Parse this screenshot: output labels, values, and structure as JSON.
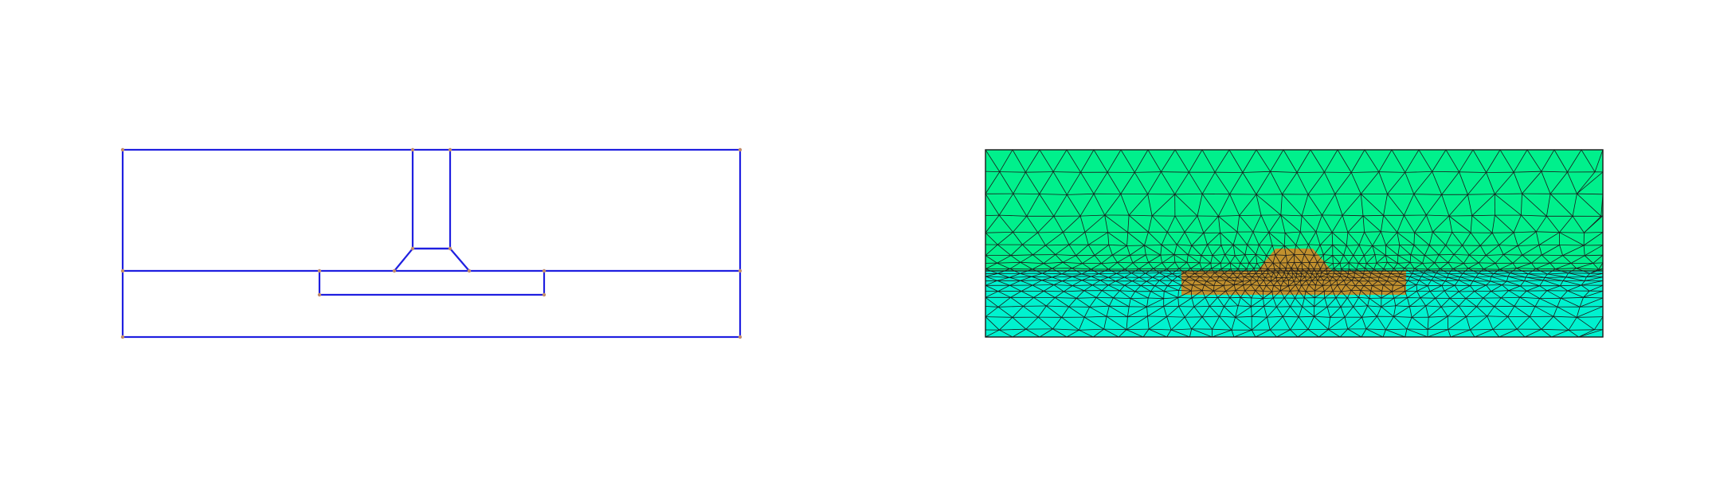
{
  "figure": {
    "background": "#ffffff",
    "panels": [
      {
        "id": "geometry",
        "description_visible": false,
        "line_color": "#1f1fe0",
        "vertex_color": "#c28b6a"
      },
      {
        "id": "mesh",
        "description_visible": false,
        "upper_region_color": "#00f08c",
        "lower_region_color": "#00f2cf",
        "core_region_color": "#c2912e",
        "edge_color": "#1a1a1a"
      }
    ]
  }
}
